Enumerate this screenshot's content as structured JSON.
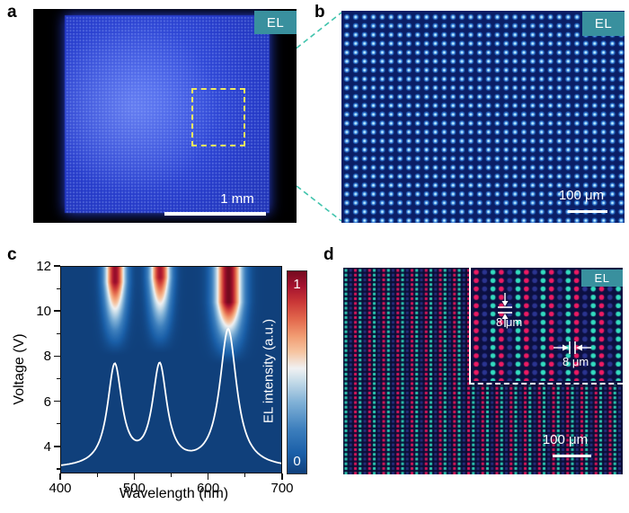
{
  "figure": {
    "badge_color": "#39909e",
    "roi_box_color": "#efe95f",
    "connector_color": "#41c4ad"
  },
  "panel_a": {
    "label": "a",
    "badge": "EL",
    "scale_bar_text": "1 mm"
  },
  "panel_b": {
    "label": "b",
    "badge": "EL",
    "scale_bar_text": "100 μm"
  },
  "panel_c": {
    "label": "c"
  },
  "panel_d": {
    "label": "d",
    "badge": "EL",
    "scale_bar_text": "100 μm",
    "inset": {
      "badge": "EL",
      "row_pitch_label": "8 μm",
      "column_pitch_label": "8 μm"
    }
  },
  "chart_data": {
    "type": "heatmap",
    "title": "",
    "xlabel": "Wavelength (nm)",
    "ylabel": "Voltage (V)",
    "xlim": [
      400,
      700
    ],
    "ylim": [
      2.8,
      12
    ],
    "x_ticks": [
      400,
      500,
      600,
      700
    ],
    "x_minor_ticks": [
      450,
      550,
      650
    ],
    "y_ticks": [
      4,
      6,
      8,
      10,
      12
    ],
    "y_minor_ticks": [
      3,
      5,
      7,
      9,
      11
    ],
    "grid": false,
    "colorbar": {
      "label": "EL intensity (a.u.)",
      "tick_top": "1",
      "tick_bottom": "0",
      "stops": [
        [
          0.0,
          "#10407b"
        ],
        [
          0.1,
          "#1a5fa8"
        ],
        [
          0.22,
          "#3d7fbd"
        ],
        [
          0.35,
          "#7fb0d6"
        ],
        [
          0.46,
          "#c8dde9"
        ],
        [
          0.52,
          "#f0f1f2"
        ],
        [
          0.6,
          "#f6c5a2"
        ],
        [
          0.68,
          "#f19c72"
        ],
        [
          0.76,
          "#e36a4e"
        ],
        [
          0.85,
          "#c93636"
        ],
        [
          0.93,
          "#a3112e"
        ],
        [
          1.0,
          "#750a1e"
        ]
      ]
    },
    "emission_bands": [
      {
        "center_nm": 474,
        "sigma_nm": 10,
        "amplitude": 0.95,
        "v_on": 8.0,
        "v_full": 11.3
      },
      {
        "center_nm": 535,
        "sigma_nm": 10,
        "amplitude": 0.92,
        "v_on": 8.1,
        "v_full": 11.5
      },
      {
        "center_nm": 628,
        "sigma_nm": 13,
        "amplitude": 1.0,
        "v_on": 7.6,
        "v_full": 10.4
      }
    ],
    "overlay_spectrum": {
      "color": "#ffffff",
      "baseline_v": 2.95,
      "peaks": [
        {
          "center_nm": 474,
          "peak_v": 7.45,
          "hwhm_nm": 12
        },
        {
          "center_nm": 535,
          "peak_v": 7.4,
          "hwhm_nm": 12
        },
        {
          "center_nm": 628,
          "peak_v": 9.1,
          "hwhm_nm": 14
        }
      ]
    }
  },
  "textures": {
    "panel_a": {
      "bg": "#000000",
      "base": "#2439c8",
      "center": "#3c59ea",
      "edge": "#1c2fae",
      "dot": "rgba(160,185,255,0.5)"
    },
    "panel_b": {
      "bg": "#0a1e66",
      "dot_outer": "#2e7de0",
      "dot_mid": "#9fe0ff",
      "dot_core": "#e8ffff"
    },
    "panel_d": {
      "bg": "#0a0d36",
      "triad": [
        "#2ed2b6",
        "#27307f",
        "#e2175c"
      ]
    },
    "inset_d": {
      "bg": "#0c1041",
      "triad": [
        "#ee1b63",
        "#2b3490",
        "#33ddc0"
      ]
    }
  }
}
